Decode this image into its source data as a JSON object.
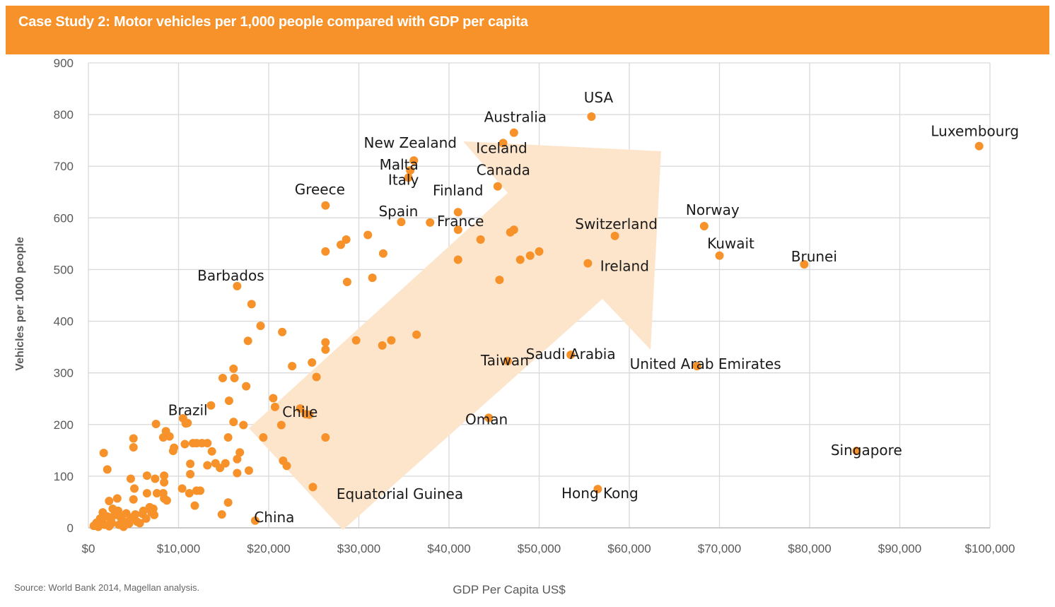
{
  "header": {
    "title": "Case Study 2: Motor vehicles per 1,000 people compared with GDP per capita",
    "band_color": "#F7922A"
  },
  "footer": {
    "source": "Source: World Bank 2014, Magellan analysis."
  },
  "colors": {
    "point": "#F7922A",
    "arrow": "#FDE5CC",
    "grid": "#D9D9D9",
    "tick_text": "#595959",
    "label_text": "#1a1a1a"
  },
  "chart_data": {
    "type": "scatter",
    "title": "Case Study 2: Motor vehicles per 1,000 people compared with GDP per capita",
    "xlabel": "GDP Per Capita US$",
    "ylabel": "Vehicles per 1000 people",
    "xlim": [
      0,
      100000
    ],
    "ylim": [
      0,
      900
    ],
    "x_ticks": [
      0,
      10000,
      20000,
      30000,
      40000,
      50000,
      60000,
      70000,
      80000,
      90000,
      100000
    ],
    "x_tick_labels": [
      "$0",
      "$10,000",
      "$20,000",
      "$30,000",
      "$40,000",
      "$50,000",
      "$60,000",
      "$70,000",
      "$80,000",
      "$90,000",
      "$100,000"
    ],
    "y_ticks": [
      0,
      100,
      200,
      300,
      400,
      500,
      600,
      700,
      800,
      900
    ],
    "y_tick_labels": [
      "0",
      "100",
      "200",
      "300",
      "400",
      "500",
      "600",
      "700",
      "800",
      "900"
    ],
    "grid": true,
    "legend": "none",
    "annotation": "upward trend arrow from lower-left to upper-right",
    "labeled_points": [
      {
        "name": "USA",
        "x": 55800,
        "y": 796
      },
      {
        "name": "Australia",
        "x": 47200,
        "y": 765
      },
      {
        "name": "Iceland",
        "x": 46000,
        "y": 745
      },
      {
        "name": "New Zealand",
        "x": 36100,
        "y": 711
      },
      {
        "name": "Malta",
        "x": 35700,
        "y": 692
      },
      {
        "name": "Italy",
        "x": 35500,
        "y": 678
      },
      {
        "name": "Canada",
        "x": 45400,
        "y": 661
      },
      {
        "name": "Greece",
        "x": 26300,
        "y": 624
      },
      {
        "name": "Finland",
        "x": 41000,
        "y": 611
      },
      {
        "name": "Spain",
        "x": 34700,
        "y": 592
      },
      {
        "name": "France",
        "x": 37900,
        "y": 591
      },
      {
        "name": "Switzerland",
        "x": 58400,
        "y": 565
      },
      {
        "name": "Norway",
        "x": 68300,
        "y": 584
      },
      {
        "name": "Kuwait",
        "x": 70000,
        "y": 527
      },
      {
        "name": "Brunei",
        "x": 79400,
        "y": 510
      },
      {
        "name": "Ireland",
        "x": 55400,
        "y": 512
      },
      {
        "name": "Luxembourg",
        "x": 98800,
        "y": 739
      },
      {
        "name": "Barbados",
        "x": 16500,
        "y": 468
      },
      {
        "name": "Saudi Arabia",
        "x": 53500,
        "y": 335
      },
      {
        "name": "Taiwan",
        "x": 46500,
        "y": 323
      },
      {
        "name": "United Arab Emirates",
        "x": 67500,
        "y": 313
      },
      {
        "name": "Chile",
        "x": 24100,
        "y": 220
      },
      {
        "name": "Brazil",
        "x": 10800,
        "y": 202
      },
      {
        "name": "Oman",
        "x": 44400,
        "y": 213
      },
      {
        "name": "Singapore",
        "x": 85200,
        "y": 149
      },
      {
        "name": "Hong Kong",
        "x": 56500,
        "y": 75
      },
      {
        "name": "Equatorial Guinea",
        "x": 24900,
        "y": 79
      },
      {
        "name": "China",
        "x": 18500,
        "y": 14
      }
    ],
    "unlabeled_points": [
      [
        41000,
        577
      ],
      [
        43500,
        558
      ],
      [
        46800,
        572
      ],
      [
        47200,
        577
      ],
      [
        47900,
        519
      ],
      [
        49000,
        527
      ],
      [
        50000,
        535
      ],
      [
        45600,
        480
      ],
      [
        41000,
        519
      ],
      [
        28000,
        548
      ],
      [
        28600,
        558
      ],
      [
        31000,
        567
      ],
      [
        32700,
        531
      ],
      [
        26300,
        535
      ],
      [
        28700,
        476
      ],
      [
        31500,
        484
      ],
      [
        18100,
        433
      ],
      [
        19100,
        391
      ],
      [
        17700,
        362
      ],
      [
        21500,
        379
      ],
      [
        26300,
        359
      ],
      [
        26300,
        345
      ],
      [
        29700,
        363
      ],
      [
        32600,
        353
      ],
      [
        33600,
        363
      ],
      [
        36400,
        374
      ],
      [
        16100,
        308
      ],
      [
        14900,
        290
      ],
      [
        16200,
        290
      ],
      [
        17500,
        274
      ],
      [
        22600,
        313
      ],
      [
        24800,
        320
      ],
      [
        25300,
        292
      ],
      [
        15600,
        246
      ],
      [
        13600,
        237
      ],
      [
        20500,
        251
      ],
      [
        20700,
        234
      ],
      [
        23500,
        231
      ],
      [
        24500,
        219
      ],
      [
        16100,
        205
      ],
      [
        17200,
        199
      ],
      [
        21400,
        199
      ],
      [
        19400,
        175
      ],
      [
        26300,
        175
      ],
      [
        10500,
        212
      ],
      [
        11000,
        203
      ],
      [
        7500,
        201
      ],
      [
        8600,
        187
      ],
      [
        8300,
        175
      ],
      [
        9000,
        177
      ],
      [
        9500,
        155
      ],
      [
        9400,
        149
      ],
      [
        10700,
        162
      ],
      [
        11600,
        164
      ],
      [
        12000,
        164
      ],
      [
        12600,
        164
      ],
      [
        13200,
        164
      ],
      [
        13700,
        148
      ],
      [
        15500,
        175
      ],
      [
        16800,
        146
      ],
      [
        16500,
        133
      ],
      [
        16500,
        106
      ],
      [
        17800,
        111
      ],
      [
        21600,
        130
      ],
      [
        11300,
        124
      ],
      [
        11300,
        104
      ],
      [
        13200,
        121
      ],
      [
        14100,
        125
      ],
      [
        14600,
        116
      ],
      [
        15200,
        125
      ],
      [
        10400,
        76
      ],
      [
        11200,
        67
      ],
      [
        12000,
        72
      ],
      [
        12400,
        72
      ],
      [
        11800,
        43
      ],
      [
        15500,
        49
      ],
      [
        14800,
        26
      ],
      [
        22000,
        120
      ],
      [
        1700,
        145
      ],
      [
        2100,
        113
      ],
      [
        5000,
        173
      ],
      [
        5000,
        156
      ],
      [
        4700,
        95
      ],
      [
        5100,
        76
      ],
      [
        6500,
        101
      ],
      [
        7400,
        95
      ],
      [
        8400,
        101
      ],
      [
        8400,
        88
      ],
      [
        6500,
        67
      ],
      [
        7600,
        67
      ],
      [
        8300,
        67
      ],
      [
        8400,
        57
      ],
      [
        8700,
        53
      ],
      [
        5000,
        55
      ],
      [
        7200,
        37
      ],
      [
        6100,
        33
      ],
      [
        3200,
        57
      ],
      [
        2300,
        52
      ],
      [
        4200,
        28
      ],
      [
        3300,
        33
      ],
      [
        2700,
        37
      ],
      [
        1600,
        30
      ],
      [
        1300,
        18
      ],
      [
        900,
        10
      ],
      [
        600,
        4
      ],
      [
        1800,
        6
      ],
      [
        2600,
        9
      ],
      [
        3400,
        6
      ],
      [
        4500,
        8
      ],
      [
        5400,
        12
      ],
      [
        6400,
        18
      ],
      [
        2100,
        22
      ],
      [
        2900,
        25
      ],
      [
        3700,
        16
      ],
      [
        4800,
        20
      ],
      [
        6000,
        27
      ],
      [
        7000,
        30
      ],
      [
        1100,
        2
      ],
      [
        2300,
        3
      ],
      [
        3900,
        2
      ],
      [
        5700,
        9
      ],
      [
        1500,
        12
      ],
      [
        2500,
        15
      ],
      [
        3500,
        22
      ],
      [
        7300,
        25
      ],
      [
        6800,
        40
      ],
      [
        4400,
        12
      ],
      [
        5200,
        26
      ]
    ]
  }
}
